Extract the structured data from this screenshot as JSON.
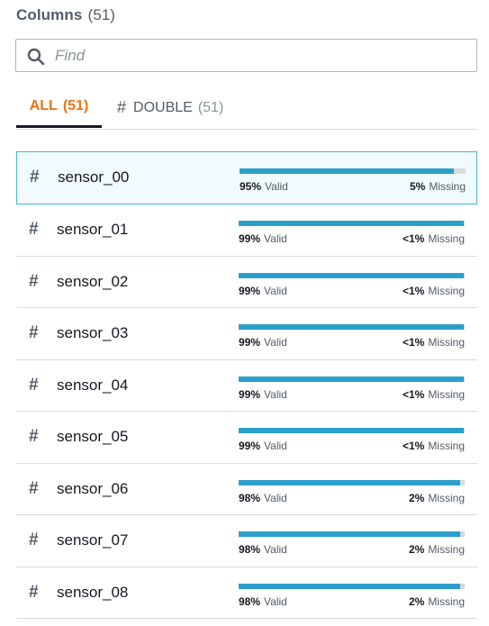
{
  "header": {
    "title": "Columns",
    "count": "(51)"
  },
  "search": {
    "placeholder": "Find",
    "value": ""
  },
  "tabs": [
    {
      "label": "ALL",
      "count": "(51)",
      "active": true
    },
    {
      "label": "DOUBLE",
      "count": "(51)",
      "active": false
    }
  ],
  "columns": [
    {
      "name": "sensor_00",
      "valid_pct": "95%",
      "valid_label": "Valid",
      "missing_pct": "5%",
      "missing_label": "Missing",
      "valid_fraction": 0.95,
      "selected": true
    },
    {
      "name": "sensor_01",
      "valid_pct": "99%",
      "valid_label": "Valid",
      "missing_pct": "<1%",
      "missing_label": "Missing",
      "valid_fraction": 0.995
    },
    {
      "name": "sensor_02",
      "valid_pct": "99%",
      "valid_label": "Valid",
      "missing_pct": "<1%",
      "missing_label": "Missing",
      "valid_fraction": 0.995
    },
    {
      "name": "sensor_03",
      "valid_pct": "99%",
      "valid_label": "Valid",
      "missing_pct": "<1%",
      "missing_label": "Missing",
      "valid_fraction": 0.995
    },
    {
      "name": "sensor_04",
      "valid_pct": "99%",
      "valid_label": "Valid",
      "missing_pct": "<1%",
      "missing_label": "Missing",
      "valid_fraction": 0.995
    },
    {
      "name": "sensor_05",
      "valid_pct": "99%",
      "valid_label": "Valid",
      "missing_pct": "<1%",
      "missing_label": "Missing",
      "valid_fraction": 0.995
    },
    {
      "name": "sensor_06",
      "valid_pct": "98%",
      "valid_label": "Valid",
      "missing_pct": "2%",
      "missing_label": "Missing",
      "valid_fraction": 0.98
    },
    {
      "name": "sensor_07",
      "valid_pct": "98%",
      "valid_label": "Valid",
      "missing_pct": "2%",
      "missing_label": "Missing",
      "valid_fraction": 0.98
    },
    {
      "name": "sensor_08",
      "valid_pct": "98%",
      "valid_label": "Valid",
      "missing_pct": "2%",
      "missing_label": "Missing",
      "valid_fraction": 0.98
    }
  ],
  "icons": {
    "search": "search-icon",
    "column_type": "hash-icon"
  },
  "colors": {
    "accent": "#ec7211",
    "bar_fill": "#2b9fcc",
    "bar_track": "#d5dbdb",
    "selected_border": "#44b9d6"
  }
}
